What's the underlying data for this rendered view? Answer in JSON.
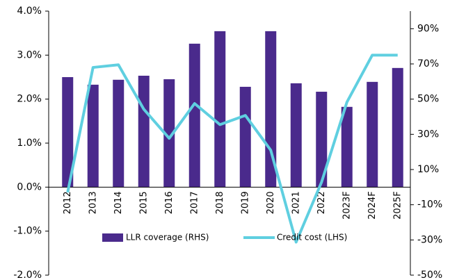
{
  "chart_data": {
    "type": "bar-line",
    "categories": [
      "2012",
      "2013",
      "2014",
      "2015",
      "2016",
      "2017",
      "2018",
      "2019",
      "2020",
      "2021",
      "2022",
      "2023F",
      "2024F",
      "2025F"
    ],
    "series": [
      {
        "name": "LLR coverage (RHS)",
        "color": "#4a2a8c",
        "type": "bar",
        "axis": "y2",
        "values": [
          62.5,
          58.2,
          61,
          63.3,
          61.3,
          81.5,
          88.6,
          57,
          88.6,
          59,
          54.2,
          45.6,
          59.8,
          67.7
        ]
      },
      {
        "name": "Credit cost (LHS)",
        "color": "#5fcfe0",
        "type": "line",
        "values": [
          -0.12,
          2.72,
          2.78,
          1.77,
          1.11,
          1.9,
          1.42,
          1.63,
          0.84,
          -1.25,
          0.11,
          1.93,
          3.0,
          3.0
        ]
      }
    ],
    "ylim": [
      -2,
      4
    ],
    "yticks": [
      {
        "value": -2,
        "label": "-2.0%"
      },
      {
        "value": -1,
        "label": "-1.0%"
      },
      {
        "value": 0,
        "label": "0.0%"
      },
      {
        "value": 1,
        "label": "1.0%"
      },
      {
        "value": 2,
        "label": "2.0%"
      },
      {
        "value": 3,
        "label": "3.0%"
      },
      {
        "value": 4,
        "label": "4.0%"
      }
    ],
    "y2lim": [
      -50,
      100
    ],
    "y2ticks": [
      {
        "value": -50,
        "label": "-50%"
      },
      {
        "value": -30,
        "label": "-30%"
      },
      {
        "value": -10,
        "label": "-10%"
      },
      {
        "value": 10,
        "label": "10%"
      },
      {
        "value": 30,
        "label": "30%"
      },
      {
        "value": 50,
        "label": "50%"
      },
      {
        "value": 70,
        "label": "70%"
      },
      {
        "value": 90,
        "label": "90%"
      }
    ]
  }
}
